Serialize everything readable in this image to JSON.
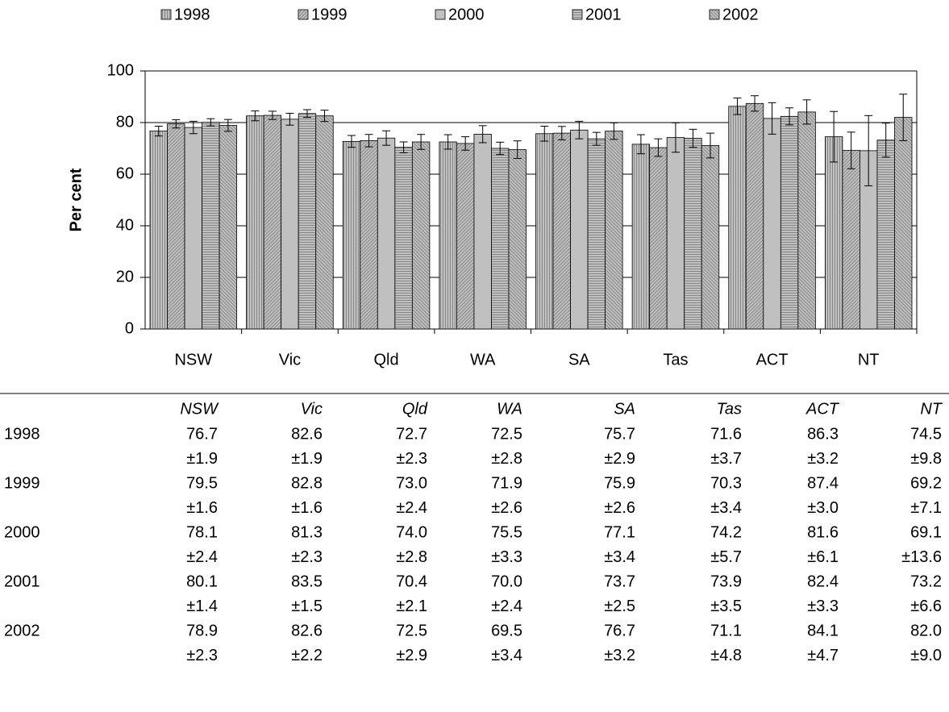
{
  "chart_data": {
    "type": "bar",
    "categories": [
      "NSW",
      "Vic",
      "Qld",
      "WA",
      "SA",
      "Tas",
      "ACT",
      "NT"
    ],
    "y_label": "Per cent",
    "ylim": [
      0,
      100
    ],
    "yticks": [
      0,
      20,
      40,
      60,
      80,
      100
    ],
    "grid": true,
    "legend": "top",
    "series": [
      {
        "name": "1998",
        "color": "#c0c0c0",
        "values": [
          76.7,
          82.6,
          72.7,
          72.5,
          75.7,
          71.6,
          86.3,
          74.5
        ],
        "value_labels": [
          "76.7",
          "82.6",
          "72.7",
          "72.5",
          "75.7",
          "71.6",
          "86.3",
          "74.5"
        ],
        "errors": [
          1.9,
          1.9,
          2.3,
          2.8,
          2.9,
          3.7,
          3.2,
          9.8
        ],
        "error_labels": [
          "±1.9",
          "±1.9",
          "±2.3",
          "±2.8",
          "±2.9",
          "±3.7",
          "±3.2",
          "±9.8"
        ]
      },
      {
        "name": "1999",
        "color": "#c0c0c0",
        "values": [
          79.5,
          82.8,
          73.0,
          71.9,
          75.9,
          70.3,
          87.4,
          69.2
        ],
        "value_labels": [
          "79.5",
          "82.8",
          "73.0",
          "71.9",
          "75.9",
          "70.3",
          "87.4",
          "69.2"
        ],
        "errors": [
          1.6,
          1.6,
          2.4,
          2.6,
          2.6,
          3.4,
          3.0,
          7.1
        ],
        "error_labels": [
          "±1.6",
          "±1.6",
          "±2.4",
          "±2.6",
          "±2.6",
          "±3.4",
          "±3.0",
          "±7.1"
        ]
      },
      {
        "name": "2000",
        "color": "#c0c0c0",
        "values": [
          78.1,
          81.3,
          74.0,
          75.5,
          77.1,
          74.2,
          81.6,
          69.1
        ],
        "value_labels": [
          "78.1",
          "81.3",
          "74.0",
          "75.5",
          "77.1",
          "74.2",
          "81.6",
          "69.1"
        ],
        "errors": [
          2.4,
          2.3,
          2.8,
          3.3,
          3.4,
          5.7,
          6.1,
          13.6
        ],
        "error_labels": [
          "±2.4",
          "±2.3",
          "±2.8",
          "±3.3",
          "±3.4",
          "±5.7",
          "±6.1",
          "±13.6"
        ]
      },
      {
        "name": "2001",
        "color": "#c0c0c0",
        "values": [
          80.1,
          83.5,
          70.4,
          70.0,
          73.7,
          73.9,
          82.4,
          73.2
        ],
        "value_labels": [
          "80.1",
          "83.5",
          "70.4",
          "70.0",
          "73.7",
          "73.9",
          "82.4",
          "73.2"
        ],
        "errors": [
          1.4,
          1.5,
          2.1,
          2.4,
          2.5,
          3.5,
          3.3,
          6.6
        ],
        "error_labels": [
          "±1.4",
          "±1.5",
          "±2.1",
          "±2.4",
          "±2.5",
          "±3.5",
          "±3.3",
          "±6.6"
        ]
      },
      {
        "name": "2002",
        "color": "#c0c0c0",
        "values": [
          78.9,
          82.6,
          72.5,
          69.5,
          76.7,
          71.1,
          84.1,
          82.0
        ],
        "value_labels": [
          "78.9",
          "82.6",
          "72.5",
          "69.5",
          "76.7",
          "71.1",
          "84.1",
          "82.0"
        ],
        "errors": [
          2.3,
          2.2,
          2.9,
          3.4,
          3.2,
          4.8,
          4.7,
          9.0
        ],
        "error_labels": [
          "±2.3",
          "±2.2",
          "±2.9",
          "±3.4",
          "±3.2",
          "±4.8",
          "±4.7",
          "±9.0"
        ]
      }
    ]
  }
}
